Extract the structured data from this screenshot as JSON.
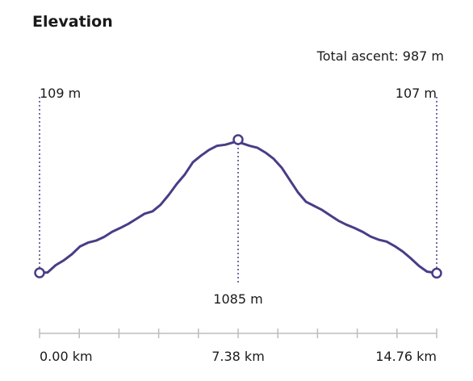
{
  "header": {
    "title": "Elevation",
    "total_ascent": "Total ascent: 987 m"
  },
  "colors": {
    "line": "#4b3c86",
    "dotted": "#4b3c86",
    "axis": "#bdbdbd",
    "text": "#1a1a1a"
  },
  "chart_data": {
    "type": "line",
    "title": "Elevation",
    "xlabel": "",
    "ylabel": "",
    "x_unit": "km",
    "y_unit": "m",
    "xlim": [
      0,
      14.76
    ],
    "grid": false,
    "x": [
      0.0,
      0.3,
      0.6,
      0.9,
      1.2,
      1.5,
      1.8,
      2.1,
      2.4,
      2.7,
      3.0,
      3.3,
      3.6,
      3.9,
      4.2,
      4.5,
      4.8,
      5.1,
      5.4,
      5.7,
      6.0,
      6.3,
      6.6,
      6.9,
      7.2,
      7.38,
      7.5,
      7.8,
      8.1,
      8.4,
      8.7,
      9.0,
      9.3,
      9.6,
      9.9,
      10.2,
      10.5,
      10.8,
      11.1,
      11.4,
      11.7,
      12.0,
      12.3,
      12.6,
      12.9,
      13.2,
      13.5,
      13.8,
      14.1,
      14.4,
      14.76
    ],
    "y": [
      109,
      112,
      165,
      200,
      245,
      302,
      330,
      345,
      372,
      410,
      438,
      468,
      505,
      542,
      560,
      608,
      680,
      760,
      830,
      920,
      968,
      1010,
      1040,
      1048,
      1065,
      1085,
      1060,
      1040,
      1025,
      990,
      945,
      880,
      790,
      700,
      630,
      600,
      570,
      530,
      492,
      462,
      438,
      410,
      375,
      352,
      338,
      305,
      265,
      215,
      160,
      118,
      107
    ],
    "start_elevation": "109 m",
    "end_elevation": "107 m",
    "max_elevation": "1085 m",
    "max_x": 7.38,
    "x_ticks": [
      0.0,
      1.476,
      2.952,
      4.428,
      5.904,
      7.38,
      8.856,
      10.332,
      11.808,
      13.284,
      14.76
    ],
    "x_tick_labels": [
      "0.00 km",
      "7.38 km",
      "14.76 km"
    ],
    "x_tick_label_values": [
      0.0,
      7.38,
      14.76
    ]
  }
}
